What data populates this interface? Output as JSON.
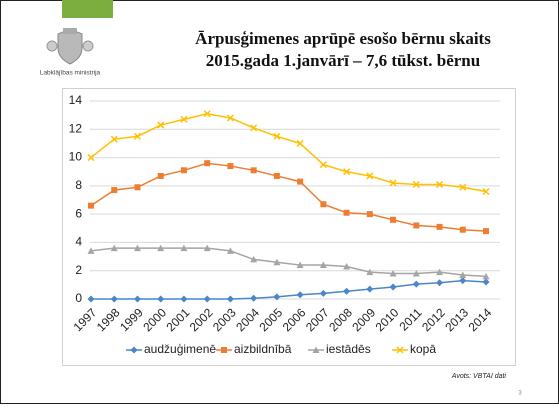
{
  "logo_text": "Labklājības ministrija",
  "source": "Avots: VBTAI dati",
  "page_number": "3",
  "chart_data": {
    "type": "line",
    "title": "Ārpusģimenes aprūpē esošo bērnu skaits",
    "subtitle": "2015.gada 1.janvārī – 7,6 tūkst. bērnu",
    "categories": [
      "1997",
      "1998",
      "1999",
      "2000",
      "2001",
      "2002",
      "2003",
      "2004",
      "2005",
      "2006",
      "2007",
      "2008",
      "2009",
      "2010",
      "2011",
      "2012",
      "2013",
      "2014"
    ],
    "ylim": [
      0,
      14
    ],
    "yticks": [
      0,
      2,
      4,
      6,
      8,
      10,
      12,
      14
    ],
    "grid": true,
    "legend": "bottom",
    "series": [
      {
        "name": "audžuģimenē",
        "color": "#4a86c8",
        "marker": "diamond",
        "values": [
          0,
          0,
          0,
          0,
          0,
          0,
          0,
          0.05,
          0.15,
          0.3,
          0.4,
          0.55,
          0.7,
          0.85,
          1.05,
          1.15,
          1.3,
          1.2
        ]
      },
      {
        "name": "aizbildnībā",
        "color": "#ed7d31",
        "marker": "square",
        "values": [
          6.6,
          7.7,
          7.9,
          8.7,
          9.1,
          9.6,
          9.4,
          9.1,
          8.7,
          8.3,
          6.7,
          6.1,
          6.0,
          5.6,
          5.2,
          5.1,
          4.9,
          4.8
        ]
      },
      {
        "name": "iestādēs",
        "color": "#a5a5a5",
        "marker": "triangle",
        "values": [
          3.4,
          3.6,
          3.6,
          3.6,
          3.6,
          3.6,
          3.4,
          2.8,
          2.6,
          2.4,
          2.4,
          2.3,
          1.9,
          1.8,
          1.8,
          1.9,
          1.7,
          1.6
        ]
      },
      {
        "name": "kopā",
        "color": "#ffc000",
        "marker": "x",
        "values": [
          10.0,
          11.3,
          11.5,
          12.3,
          12.7,
          13.1,
          12.8,
          12.1,
          11.5,
          11.0,
          9.5,
          9.0,
          8.7,
          8.2,
          8.1,
          8.1,
          7.9,
          7.6
        ]
      }
    ]
  }
}
